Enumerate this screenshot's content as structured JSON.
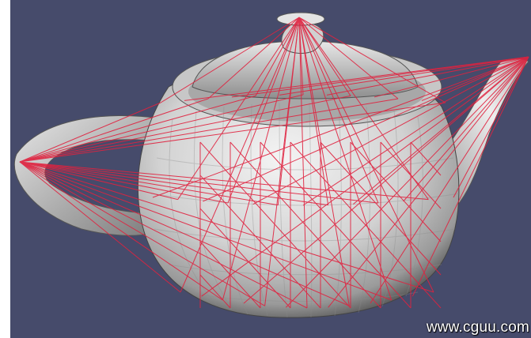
{
  "viewport": {
    "background": "#464b6b"
  },
  "model": {
    "shape": "teapot",
    "surface_color": "#d8d8d8",
    "wire_color": "#e0223f"
  },
  "watermark": {
    "text": "www.cguu.com"
  }
}
